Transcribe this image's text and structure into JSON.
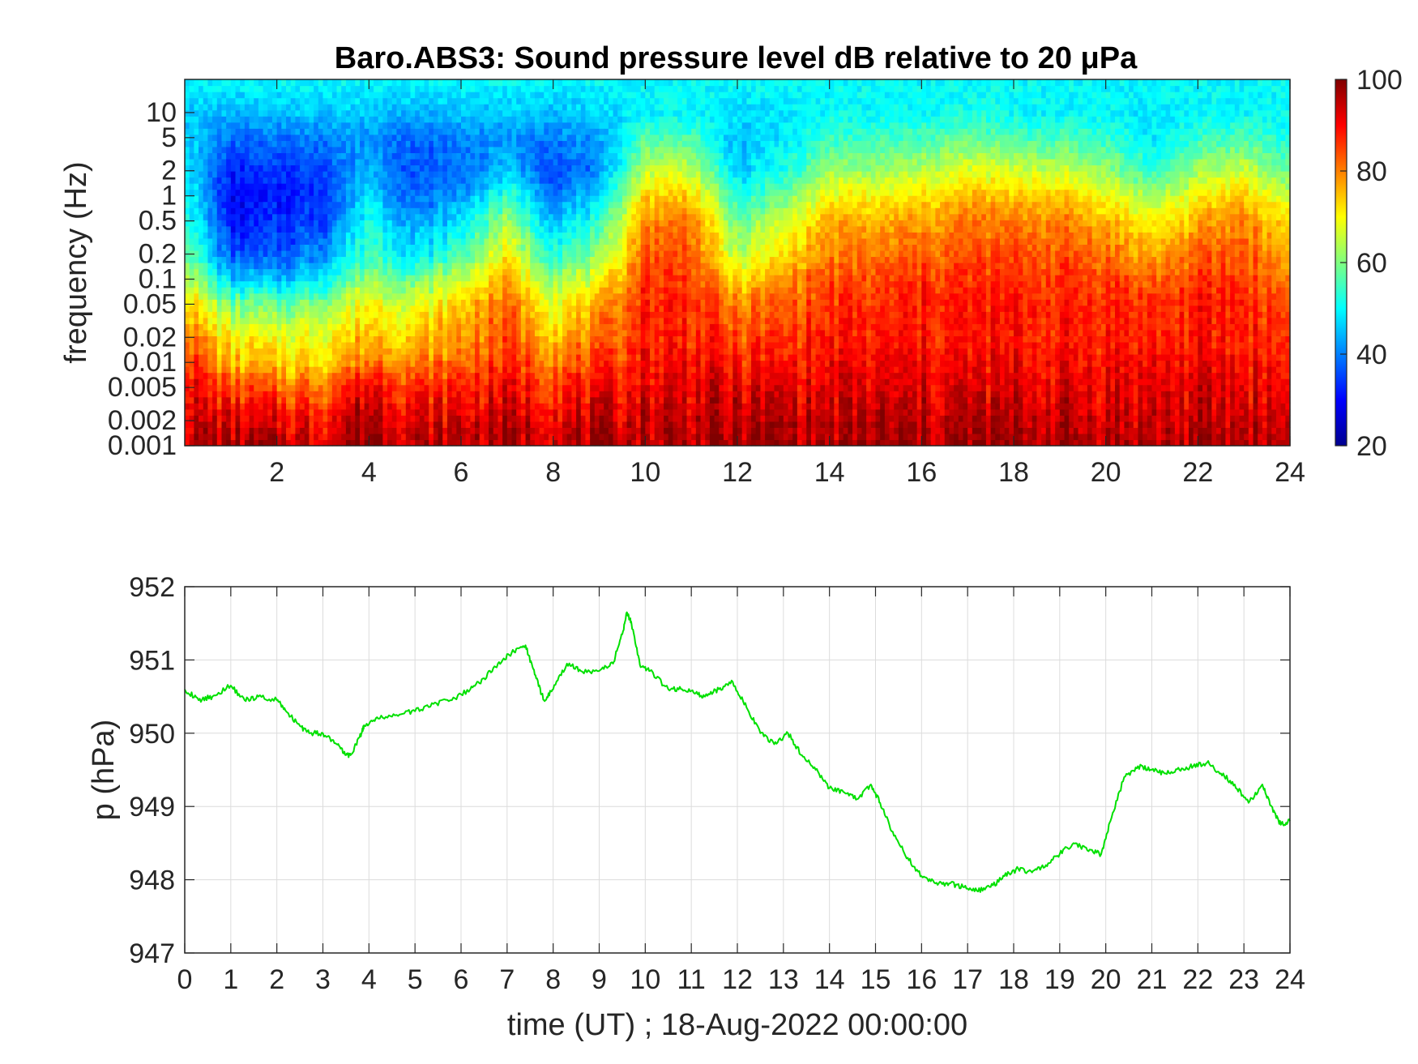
{
  "chart_data": [
    {
      "type": "heatmap",
      "title": "Baro.ABS3: Sound pressure level dB relative to 20 μPa",
      "ylabel": "frequency (Hz)",
      "xlabel": "",
      "x_range": [
        0,
        24
      ],
      "x_ticks": [
        2,
        4,
        6,
        8,
        10,
        12,
        14,
        16,
        18,
        20,
        22,
        24
      ],
      "y_scale": "log",
      "y_range": [
        0.001,
        25
      ],
      "y_ticks": [
        {
          "value": 0.001,
          "label": "0.001"
        },
        {
          "value": 0.002,
          "label": "0.002"
        },
        {
          "value": 0.005,
          "label": "0.005"
        },
        {
          "value": 0.01,
          "label": "0.01"
        },
        {
          "value": 0.02,
          "label": "0.02"
        },
        {
          "value": 0.05,
          "label": "0.05"
        },
        {
          "value": 0.1,
          "label": "0.1"
        },
        {
          "value": 0.2,
          "label": "0.2"
        },
        {
          "value": 0.5,
          "label": "0.5"
        },
        {
          "value": 1,
          "label": "1"
        },
        {
          "value": 2,
          "label": "2"
        },
        {
          "value": 5,
          "label": "5"
        },
        {
          "value": 10,
          "label": "10"
        }
      ],
      "colorbar": {
        "colormap": "jet",
        "range": [
          20,
          100
        ],
        "ticks": [
          20,
          40,
          60,
          80,
          100
        ]
      },
      "grid": false,
      "level_profiles": [
        {
          "hour": 0.0,
          "levels_db": [
            96,
            95,
            92,
            88,
            82,
            75,
            66,
            60,
            55,
            52,
            50,
            48,
            46,
            50
          ]
        },
        {
          "hour": 1.0,
          "levels_db": [
            96,
            92,
            84,
            76,
            70,
            60,
            46,
            36,
            31,
            29,
            32,
            38,
            44,
            50
          ]
        },
        {
          "hour": 2.0,
          "levels_db": [
            96,
            91,
            82,
            74,
            68,
            58,
            44,
            36,
            33,
            31,
            33,
            39,
            45,
            50
          ]
        },
        {
          "hour": 3.0,
          "levels_db": [
            94,
            90,
            82,
            74,
            70,
            62,
            50,
            42,
            36,
            34,
            36,
            40,
            46,
            50
          ]
        },
        {
          "hour": 4.0,
          "levels_db": [
            100,
            98,
            92,
            82,
            76,
            70,
            62,
            56,
            52,
            48,
            44,
            42,
            46,
            50
          ]
        },
        {
          "hour": 5.0,
          "levels_db": [
            95,
            92,
            86,
            80,
            74,
            68,
            58,
            48,
            42,
            38,
            36,
            38,
            44,
            50
          ]
        },
        {
          "hour": 6.0,
          "levels_db": [
            96,
            93,
            88,
            82,
            78,
            74,
            66,
            56,
            48,
            42,
            38,
            40,
            45,
            50
          ]
        },
        {
          "hour": 7.0,
          "levels_db": [
            97,
            94,
            90,
            86,
            84,
            82,
            76,
            70,
            62,
            54,
            46,
            42,
            46,
            50
          ]
        },
        {
          "hour": 8.0,
          "levels_db": [
            96,
            93,
            88,
            82,
            76,
            70,
            62,
            54,
            46,
            40,
            36,
            40,
            45,
            50
          ]
        },
        {
          "hour": 9.0,
          "levels_db": [
            96,
            93,
            88,
            84,
            80,
            76,
            68,
            60,
            52,
            46,
            40,
            42,
            46,
            50
          ]
        },
        {
          "hour": 10.0,
          "levels_db": [
            96,
            95,
            92,
            90,
            88,
            88,
            86,
            84,
            80,
            74,
            66,
            56,
            50,
            50
          ]
        },
        {
          "hour": 11.0,
          "levels_db": [
            96,
            95,
            92,
            90,
            88,
            88,
            86,
            84,
            80,
            74,
            66,
            56,
            50,
            50
          ]
        },
        {
          "hour": 12.0,
          "levels_db": [
            97,
            95,
            92,
            88,
            84,
            80,
            72,
            64,
            58,
            52,
            46,
            44,
            48,
            50
          ]
        },
        {
          "hour": 13.0,
          "levels_db": [
            98,
            96,
            92,
            88,
            86,
            82,
            78,
            72,
            66,
            58,
            52,
            48,
            48,
            50
          ]
        },
        {
          "hour": 14.0,
          "levels_db": [
            96,
            94,
            92,
            90,
            88,
            86,
            84,
            80,
            76,
            70,
            62,
            54,
            50,
            50
          ]
        },
        {
          "hour": 15.0,
          "levels_db": [
            97,
            95,
            92,
            90,
            88,
            86,
            84,
            80,
            76,
            70,
            62,
            54,
            50,
            50
          ]
        },
        {
          "hour": 16.0,
          "levels_db": [
            97,
            95,
            92,
            90,
            88,
            88,
            86,
            82,
            78,
            72,
            64,
            56,
            50,
            50
          ]
        },
        {
          "hour": 17.0,
          "levels_db": [
            97,
            95,
            92,
            90,
            88,
            88,
            86,
            84,
            80,
            76,
            68,
            58,
            52,
            50
          ]
        },
        {
          "hour": 18.0,
          "levels_db": [
            97,
            95,
            92,
            90,
            88,
            88,
            86,
            84,
            80,
            74,
            66,
            56,
            50,
            50
          ]
        },
        {
          "hour": 19.0,
          "levels_db": [
            97,
            95,
            92,
            90,
            88,
            88,
            86,
            84,
            80,
            74,
            66,
            56,
            50,
            50
          ]
        },
        {
          "hour": 20.0,
          "levels_db": [
            96,
            94,
            92,
            90,
            88,
            88,
            86,
            82,
            76,
            70,
            62,
            54,
            50,
            50
          ]
        },
        {
          "hour": 21.0,
          "levels_db": [
            96,
            94,
            92,
            90,
            88,
            86,
            82,
            76,
            70,
            62,
            54,
            48,
            48,
            50
          ]
        },
        {
          "hour": 22.0,
          "levels_db": [
            96,
            94,
            92,
            90,
            88,
            88,
            86,
            82,
            76,
            70,
            62,
            54,
            50,
            50
          ]
        },
        {
          "hour": 23.0,
          "levels_db": [
            96,
            94,
            92,
            90,
            88,
            88,
            86,
            84,
            80,
            74,
            66,
            56,
            50,
            50
          ]
        },
        {
          "hour": 24.0,
          "levels_db": [
            96,
            94,
            90,
            88,
            86,
            84,
            80,
            76,
            72,
            66,
            58,
            52,
            50,
            50
          ]
        }
      ],
      "level_frequencies_hz": [
        0.001,
        0.002,
        0.005,
        0.01,
        0.02,
        0.05,
        0.1,
        0.2,
        0.5,
        1,
        2,
        5,
        10,
        25
      ]
    },
    {
      "type": "line",
      "title": "",
      "xlabel": "time (UT) ; 18-Aug-2022 00:00:00",
      "ylabel": "p (hPa)",
      "xlim": [
        0,
        24
      ],
      "ylim": [
        947,
        952
      ],
      "x_ticks": [
        0,
        1,
        2,
        3,
        4,
        5,
        6,
        7,
        8,
        9,
        10,
        11,
        12,
        13,
        14,
        15,
        16,
        17,
        18,
        19,
        20,
        21,
        22,
        23,
        24
      ],
      "y_ticks": [
        947,
        948,
        949,
        950,
        951,
        952
      ],
      "grid": true,
      "series": [
        {
          "color": "#00e000",
          "x": [
            0,
            0.3,
            0.6,
            1.0,
            1.3,
            1.6,
            2.0,
            2.2,
            2.5,
            2.7,
            3.0,
            3.3,
            3.5,
            3.6,
            3.8,
            3.9,
            4.2,
            4.6,
            5.0,
            5.4,
            5.8,
            6.2,
            6.5,
            6.8,
            7.1,
            7.4,
            7.6,
            7.8,
            8.0,
            8.3,
            8.6,
            9.0,
            9.3,
            9.5,
            9.6,
            9.7,
            9.9,
            10.1,
            10.5,
            10.8,
            11.1,
            11.3,
            11.6,
            11.9,
            12.2,
            12.5,
            12.8,
            13.1,
            13.4,
            13.7,
            14.0,
            14.3,
            14.6,
            14.9,
            15.1,
            15.4,
            15.7,
            16.0,
            16.3,
            16.6,
            16.9,
            17.2,
            17.5,
            17.8,
            18.1,
            18.4,
            18.7,
            19.0,
            19.3,
            19.6,
            19.9,
            20.1,
            20.4,
            20.7,
            21.0,
            21.3,
            21.6,
            21.9,
            22.2,
            22.5,
            22.8,
            23.1,
            23.4,
            23.6,
            23.8,
            24.0
          ],
          "y": [
            950.6,
            950.45,
            950.5,
            950.65,
            950.45,
            950.5,
            950.45,
            950.3,
            950.1,
            950.0,
            950.0,
            949.85,
            949.7,
            949.7,
            949.95,
            950.1,
            950.2,
            950.25,
            950.3,
            950.4,
            950.45,
            950.6,
            950.75,
            950.95,
            951.1,
            951.2,
            950.8,
            950.45,
            950.6,
            950.95,
            950.85,
            950.85,
            950.95,
            951.35,
            951.65,
            951.5,
            950.9,
            950.85,
            950.6,
            950.6,
            950.55,
            950.5,
            950.6,
            950.7,
            950.35,
            950.0,
            949.85,
            950.0,
            949.7,
            949.5,
            949.25,
            949.2,
            949.1,
            949.3,
            949.05,
            948.6,
            948.3,
            948.05,
            947.95,
            947.95,
            947.9,
            947.85,
            947.9,
            948.05,
            948.15,
            948.1,
            948.2,
            948.35,
            948.5,
            948.4,
            948.35,
            948.8,
            949.4,
            949.55,
            949.5,
            949.45,
            949.5,
            949.55,
            949.6,
            949.45,
            949.3,
            949.05,
            949.3,
            949.0,
            948.75,
            948.8
          ]
        }
      ]
    }
  ]
}
